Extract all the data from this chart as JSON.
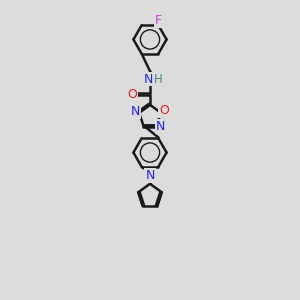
{
  "background_color": "#dcdcdc",
  "line_color": "#1a1a1a",
  "bond_width": 1.8,
  "figsize": [
    3.0,
    3.0
  ],
  "dpi": 100,
  "atoms": {
    "F": {
      "color": "#cc44cc"
    },
    "O": {
      "color": "#dd2222"
    },
    "N": {
      "color": "#2222dd"
    },
    "NH": {
      "color": "#2222dd"
    },
    "H": {
      "color": "#448888"
    }
  }
}
